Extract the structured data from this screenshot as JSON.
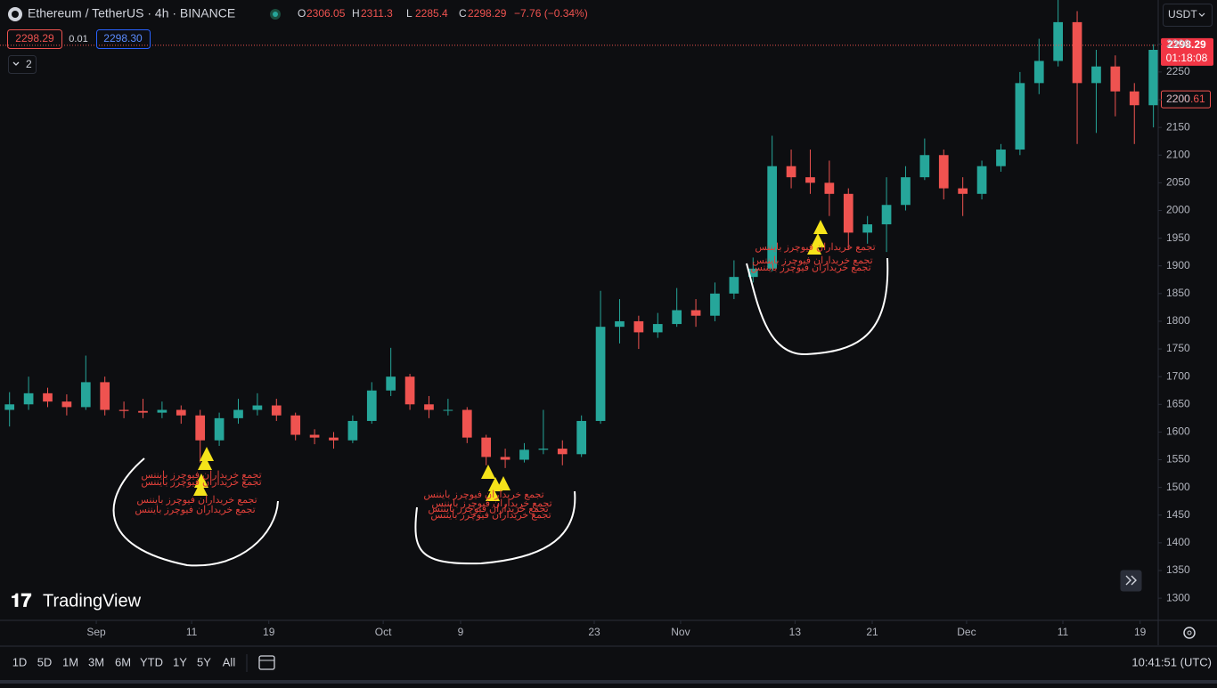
{
  "header": {
    "symbol": "Ethereum / TetherUS · 4h · BINANCE",
    "ohlc": [
      {
        "label": "O",
        "value": 2306.05
      },
      {
        "label": "H",
        "value": 2311.3
      },
      {
        "label": "L",
        "value": 2285.4
      },
      {
        "label": "C",
        "value": 2298.29
      }
    ],
    "change": "−7.76 (−0.34%)",
    "bid": 2298.29,
    "spread": 0.01,
    "ask": "2298.30",
    "indicators": "2"
  },
  "currency": "USDT",
  "countdown": "01:18:08",
  "alert_price": 2200.61,
  "signal_label": "تجمع خریداران فیوچرز بایننس",
  "logo": "TradingView",
  "ranges": [
    "1D",
    "5D",
    "1M",
    "3M",
    "6M",
    "YTD",
    "1Y",
    "5Y",
    "All"
  ],
  "clock": "10:41:51 (UTC)",
  "chart_data": {
    "type": "candlestick",
    "up_color": "#26a69a",
    "down_color": "#ef5350",
    "open": [
      1640,
      1650,
      1670,
      1655,
      1645,
      1690,
      1640,
      1638,
      1635,
      1640,
      1630,
      1585,
      1625,
      1640,
      1648,
      1630,
      1595,
      1590,
      1585,
      1620,
      1675,
      1700,
      1650,
      1640,
      1640,
      1590,
      1555,
      1550,
      1568,
      1570,
      1560,
      1620,
      1790,
      1800,
      1780,
      1795,
      1820,
      1810,
      1850,
      1880,
      1895,
      2080,
      2060,
      2050,
      2030,
      1960,
      1975,
      2010,
      2060,
      2100,
      2040,
      2030,
      2080,
      2110,
      2230,
      2270,
      2340,
      2230,
      2260,
      2215,
      2190
    ],
    "high": [
      1672,
      1700,
      1680,
      1668,
      1738,
      1700,
      1655,
      1660,
      1655,
      1648,
      1640,
      1635,
      1660,
      1670,
      1660,
      1635,
      1605,
      1600,
      1630,
      1690,
      1752,
      1705,
      1665,
      1660,
      1645,
      1595,
      1570,
      1580,
      1640,
      1585,
      1630,
      1855,
      1840,
      1810,
      1815,
      1860,
      1840,
      1870,
      1910,
      1915,
      2135,
      2110,
      2110,
      2090,
      2040,
      1990,
      2060,
      2080,
      2130,
      2110,
      2060,
      2090,
      2120,
      2250,
      2310,
      2380,
      2360,
      2290,
      2280,
      2230,
      2300
    ],
    "low": [
      1610,
      1640,
      1645,
      1630,
      1640,
      1630,
      1625,
      1625,
      1625,
      1615,
      1545,
      1575,
      1615,
      1630,
      1620,
      1585,
      1578,
      1570,
      1580,
      1615,
      1665,
      1640,
      1625,
      1630,
      1580,
      1540,
      1535,
      1545,
      1560,
      1540,
      1555,
      1615,
      1760,
      1750,
      1770,
      1790,
      1790,
      1800,
      1840,
      1870,
      1890,
      2040,
      2030,
      1990,
      1930,
      1940,
      1925,
      2000,
      2055,
      2020,
      1990,
      2020,
      2070,
      2100,
      2210,
      2260,
      2120,
      2140,
      2170,
      2120,
      2150
    ],
    "close": [
      1650,
      1670,
      1655,
      1645,
      1690,
      1640,
      1638,
      1635,
      1640,
      1630,
      1585,
      1625,
      1640,
      1648,
      1630,
      1595,
      1590,
      1585,
      1620,
      1675,
      1700,
      1650,
      1640,
      1640,
      1590,
      1555,
      1550,
      1568,
      1570,
      1560,
      1620,
      1790,
      1800,
      1780,
      1795,
      1820,
      1810,
      1850,
      1880,
      1895,
      2080,
      2060,
      2050,
      2030,
      1960,
      1975,
      2010,
      2060,
      2100,
      2040,
      2030,
      2080,
      2110,
      2230,
      2270,
      2340,
      2230,
      2260,
      2215,
      2190,
      2290
    ],
    "ylim": [
      1260,
      2380
    ],
    "yticks": [
      1300,
      1350,
      1400,
      1450,
      1500,
      1550,
      1600,
      1650,
      1700,
      1750,
      1800,
      1850,
      1900,
      1950,
      2000,
      2050,
      2100,
      2150,
      2200,
      2250,
      2300
    ],
    "xlim": [
      -0.5,
      60.25
    ],
    "xticks": [
      {
        "value": 4.55,
        "label": "Sep"
      },
      {
        "value": 9.55,
        "label": "11"
      },
      {
        "value": 13.6,
        "label": "19"
      },
      {
        "value": 19.6,
        "label": "Oct"
      },
      {
        "value": 23.66,
        "label": "9"
      },
      {
        "value": 30.67,
        "label": "23"
      },
      {
        "value": 35.2,
        "label": "Nov"
      },
      {
        "value": 41.2,
        "label": "13"
      },
      {
        "value": 45.25,
        "label": "21"
      },
      {
        "value": 50.2,
        "label": "Dec"
      },
      {
        "value": 55.25,
        "label": "11"
      },
      {
        "value": 59.3,
        "label": "19"
      }
    ]
  }
}
